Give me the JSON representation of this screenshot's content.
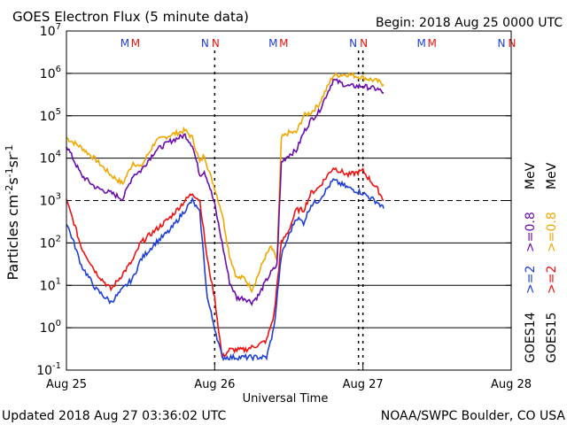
{
  "header": {
    "title": "GOES Electron Flux (5 minute data)",
    "begin": "Begin: 2018 Aug 25 0000 UTC"
  },
  "footer": {
    "updated": "Updated 2018 Aug 27 03:36:02 UTC",
    "credit": "NOAA/SWPC Boulder, CO USA"
  },
  "colors": {
    "goes14_gt2": "#1f3fd6",
    "goes15_gt2": "#ee1111",
    "goes14_gt08": "#6a0dad",
    "goes15_gt08": "#f0a800",
    "m_blue": "#1f3fd6",
    "m_red": "#ee1111"
  },
  "legend": {
    "goes14": "GOES14",
    "goes15": "GOES15",
    "gt2_a": ">=2",
    "gt2_b": ">=2",
    "gt08_a": ">=0.8",
    "gt08_b": ">=0.8",
    "mev_a": "MeV",
    "mev_b": "MeV"
  },
  "markers": {
    "m": "M",
    "n": "N"
  },
  "chart_data": {
    "type": "line",
    "title": "GOES Electron Flux (5 minute data)",
    "xlabel": "Universal Time",
    "ylabel": "Particles cm-2 s-1 sr-1",
    "yscale": "log",
    "ylim": [
      0.1,
      10000000
    ],
    "xlim_days": [
      0,
      3
    ],
    "x_ticks": [
      "Aug 25",
      "Aug 26",
      "Aug 27",
      "Aug 28"
    ],
    "y_ticks": [
      {
        "base": "10",
        "exp": "-1"
      },
      {
        "base": "10",
        "exp": "0"
      },
      {
        "base": "10",
        "exp": "1"
      },
      {
        "base": "10",
        "exp": "2"
      },
      {
        "base": "10",
        "exp": "3"
      },
      {
        "base": "10",
        "exp": "4"
      },
      {
        "base": "10",
        "exp": "5"
      },
      {
        "base": "10",
        "exp": "6"
      },
      {
        "base": "10",
        "exp": "7"
      }
    ],
    "threshold": 1000,
    "day_marks": [
      {
        "label_a": "M",
        "label_b": "M",
        "x": 0.43
      },
      {
        "label_a": "N",
        "label_b": "N",
        "x": 0.97
      },
      {
        "label_a": "M",
        "label_b": "M",
        "x": 1.43
      },
      {
        "label_a": "N",
        "label_b": "N",
        "x": 1.97
      },
      {
        "label_a": "M",
        "label_b": "M",
        "x": 2.43
      },
      {
        "label_a": "N",
        "label_b": "N",
        "x": 2.97
      }
    ],
    "dashed_day_lines": [
      1.0,
      1.97,
      2.0
    ],
    "series": [
      {
        "name": "GOES15 >=0.8 MeV",
        "color": "#f0a800",
        "x": [
          0,
          0.1,
          0.2,
          0.3,
          0.38,
          0.45,
          0.5,
          0.6,
          0.7,
          0.8,
          0.85,
          0.9,
          0.93,
          0.96,
          1.0,
          1.05,
          1.1,
          1.15,
          1.2,
          1.25,
          1.3,
          1.33,
          1.38,
          1.42,
          1.45,
          1.5,
          1.55,
          1.6,
          1.65,
          1.7,
          1.8,
          1.9,
          2.0,
          2.1,
          2.14
        ],
        "y": [
          30000,
          18000,
          9000,
          4000,
          2500,
          8000,
          6000,
          25000,
          35000,
          45000,
          30000,
          8000,
          12000,
          5000,
          2000,
          500,
          50,
          15,
          15,
          8,
          20,
          40,
          80,
          40,
          30000,
          40000,
          40000,
          100000,
          120000,
          180000,
          900000,
          950000,
          800000,
          650000,
          550000
        ]
      },
      {
        "name": "GOES14 >=0.8 MeV",
        "color": "#6a0dad",
        "x": [
          0,
          0.1,
          0.2,
          0.3,
          0.38,
          0.45,
          0.5,
          0.6,
          0.7,
          0.8,
          0.85,
          0.9,
          0.93,
          0.96,
          1.0,
          1.05,
          1.1,
          1.15,
          1.2,
          1.25,
          1.3,
          1.33,
          1.38,
          1.42,
          1.45,
          1.5,
          1.55,
          1.6,
          1.65,
          1.7,
          1.8,
          1.9,
          2.0,
          2.1,
          2.14
        ],
        "y": [
          20000,
          4000,
          2000,
          1500,
          1100,
          4000,
          5000,
          15000,
          25000,
          35000,
          20000,
          4000,
          5000,
          2500,
          800,
          100,
          12,
          5,
          5,
          4,
          6,
          10,
          20,
          30,
          8000,
          12000,
          15000,
          40000,
          80000,
          120000,
          700000,
          500000,
          500000,
          420000,
          350000
        ]
      },
      {
        "name": "GOES15 >=2 MeV",
        "color": "#ee1111",
        "x": [
          0,
          0.05,
          0.1,
          0.2,
          0.3,
          0.45,
          0.5,
          0.6,
          0.7,
          0.8,
          0.85,
          0.9,
          0.95,
          1.0,
          1.05,
          1.1,
          1.2,
          1.3,
          1.35,
          1.4,
          1.45,
          1.5,
          1.55,
          1.6,
          1.65,
          1.7,
          1.8,
          1.9,
          2.0,
          2.1,
          2.14
        ],
        "y": [
          1000,
          300,
          80,
          20,
          8,
          40,
          100,
          200,
          400,
          1000,
          1500,
          1000,
          40,
          5,
          0.2,
          0.3,
          0.3,
          0.4,
          0.5,
          2,
          100,
          200,
          600,
          600,
          1500,
          2000,
          6000,
          4000,
          5000,
          1800,
          1000
        ]
      },
      {
        "name": "GOES14 >=2 MeV",
        "color": "#1f3fd6",
        "x": [
          0,
          0.05,
          0.1,
          0.2,
          0.3,
          0.45,
          0.5,
          0.6,
          0.7,
          0.8,
          0.85,
          0.9,
          0.95,
          1.0,
          1.05,
          1.1,
          1.2,
          1.3,
          1.35,
          1.4,
          1.45,
          1.5,
          1.55,
          1.6,
          1.65,
          1.7,
          1.8,
          1.9,
          2.0,
          2.1,
          2.14
        ],
        "y": [
          300,
          100,
          30,
          8,
          4,
          15,
          40,
          100,
          200,
          600,
          1000,
          500,
          5,
          1,
          0.2,
          0.2,
          0.2,
          0.2,
          0.2,
          1,
          50,
          150,
          400,
          300,
          800,
          1000,
          3000,
          2000,
          1500,
          900,
          650
        ]
      }
    ]
  }
}
